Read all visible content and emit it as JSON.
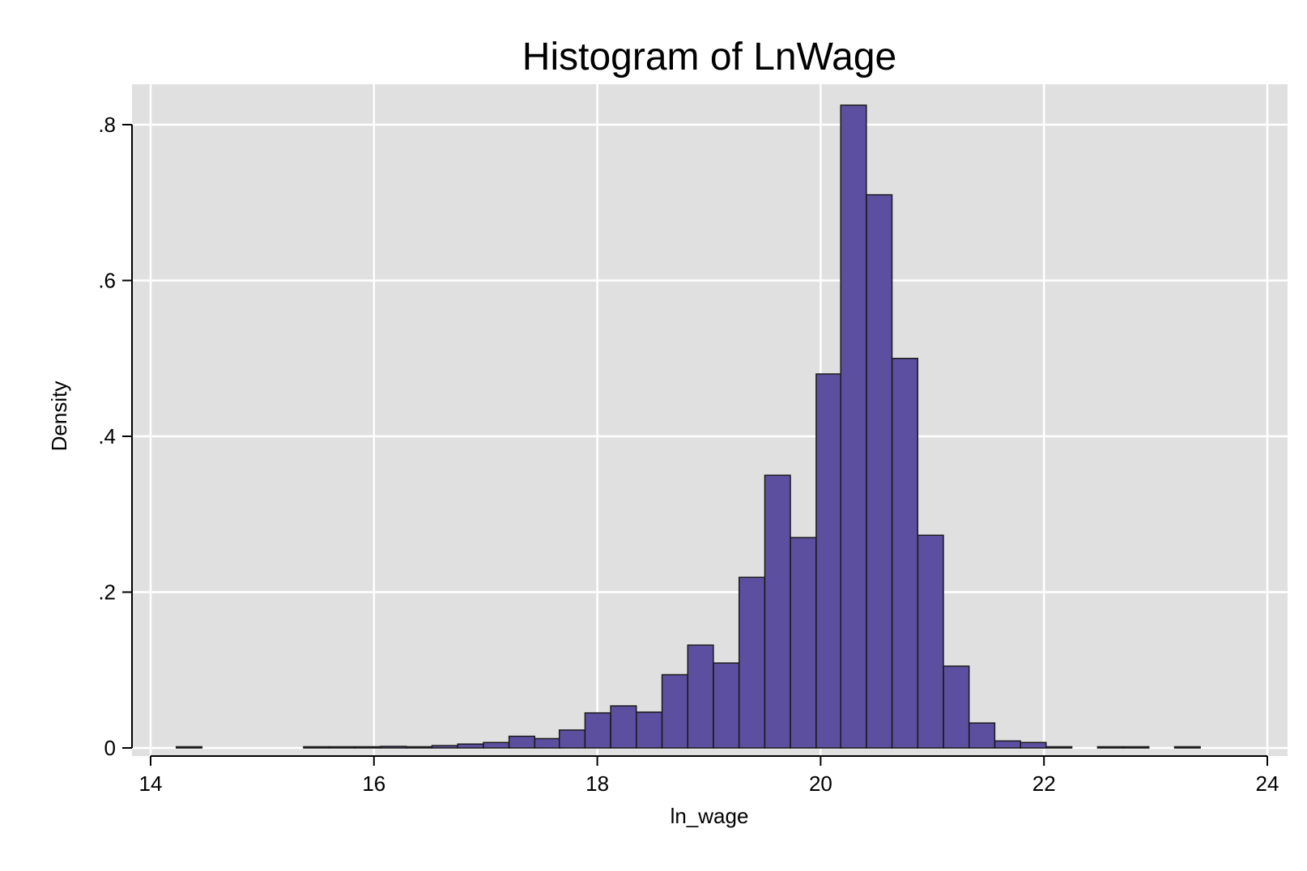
{
  "chart_data": {
    "type": "bar",
    "title": "Histogram of LnWage",
    "xlabel": "ln_wage",
    "ylabel": "Density",
    "xlim": [
      14,
      24
    ],
    "ylim": [
      0,
      0.8
    ],
    "x_ticks": [
      14,
      16,
      18,
      20,
      22,
      24
    ],
    "x_tick_labels": [
      "14",
      "16",
      "18",
      "20",
      "22",
      "24"
    ],
    "y_ticks": [
      0,
      0.2,
      0.4,
      0.6,
      0.8
    ],
    "y_tick_labels": [
      "0",
      ".2",
      ".4",
      ".6",
      ".8"
    ],
    "grid": true,
    "bar_color": "#5c4fa0",
    "bar_edge_color": "#1a1a1a",
    "background_color": "#e0e0e0",
    "grid_color": "#ffffff",
    "bin_width": 0.229,
    "bins": [
      {
        "x0": 14.23,
        "value": 0.001
      },
      {
        "x0": 15.37,
        "value": 0.001
      },
      {
        "x0": 15.6,
        "value": 0.001
      },
      {
        "x0": 15.83,
        "value": 0.001
      },
      {
        "x0": 16.06,
        "value": 0.002
      },
      {
        "x0": 16.29,
        "value": 0.001
      },
      {
        "x0": 16.52,
        "value": 0.003
      },
      {
        "x0": 16.75,
        "value": 0.005
      },
      {
        "x0": 16.98,
        "value": 0.007
      },
      {
        "x0": 17.21,
        "value": 0.015
      },
      {
        "x0": 17.44,
        "value": 0.012
      },
      {
        "x0": 17.66,
        "value": 0.023
      },
      {
        "x0": 17.89,
        "value": 0.045
      },
      {
        "x0": 18.12,
        "value": 0.054
      },
      {
        "x0": 18.35,
        "value": 0.046
      },
      {
        "x0": 18.58,
        "value": 0.094
      },
      {
        "x0": 18.81,
        "value": 0.132
      },
      {
        "x0": 19.04,
        "value": 0.109
      },
      {
        "x0": 19.27,
        "value": 0.219
      },
      {
        "x0": 19.5,
        "value": 0.35
      },
      {
        "x0": 19.73,
        "value": 0.27
      },
      {
        "x0": 19.96,
        "value": 0.48
      },
      {
        "x0": 20.18,
        "value": 0.825
      },
      {
        "x0": 20.41,
        "value": 0.71
      },
      {
        "x0": 20.64,
        "value": 0.5
      },
      {
        "x0": 20.87,
        "value": 0.273
      },
      {
        "x0": 21.1,
        "value": 0.105
      },
      {
        "x0": 21.33,
        "value": 0.032
      },
      {
        "x0": 21.56,
        "value": 0.009
      },
      {
        "x0": 21.79,
        "value": 0.007
      },
      {
        "x0": 22.02,
        "value": 0.001
      },
      {
        "x0": 22.48,
        "value": 0.001
      },
      {
        "x0": 22.71,
        "value": 0.001
      },
      {
        "x0": 23.17,
        "value": 0.001
      }
    ]
  }
}
